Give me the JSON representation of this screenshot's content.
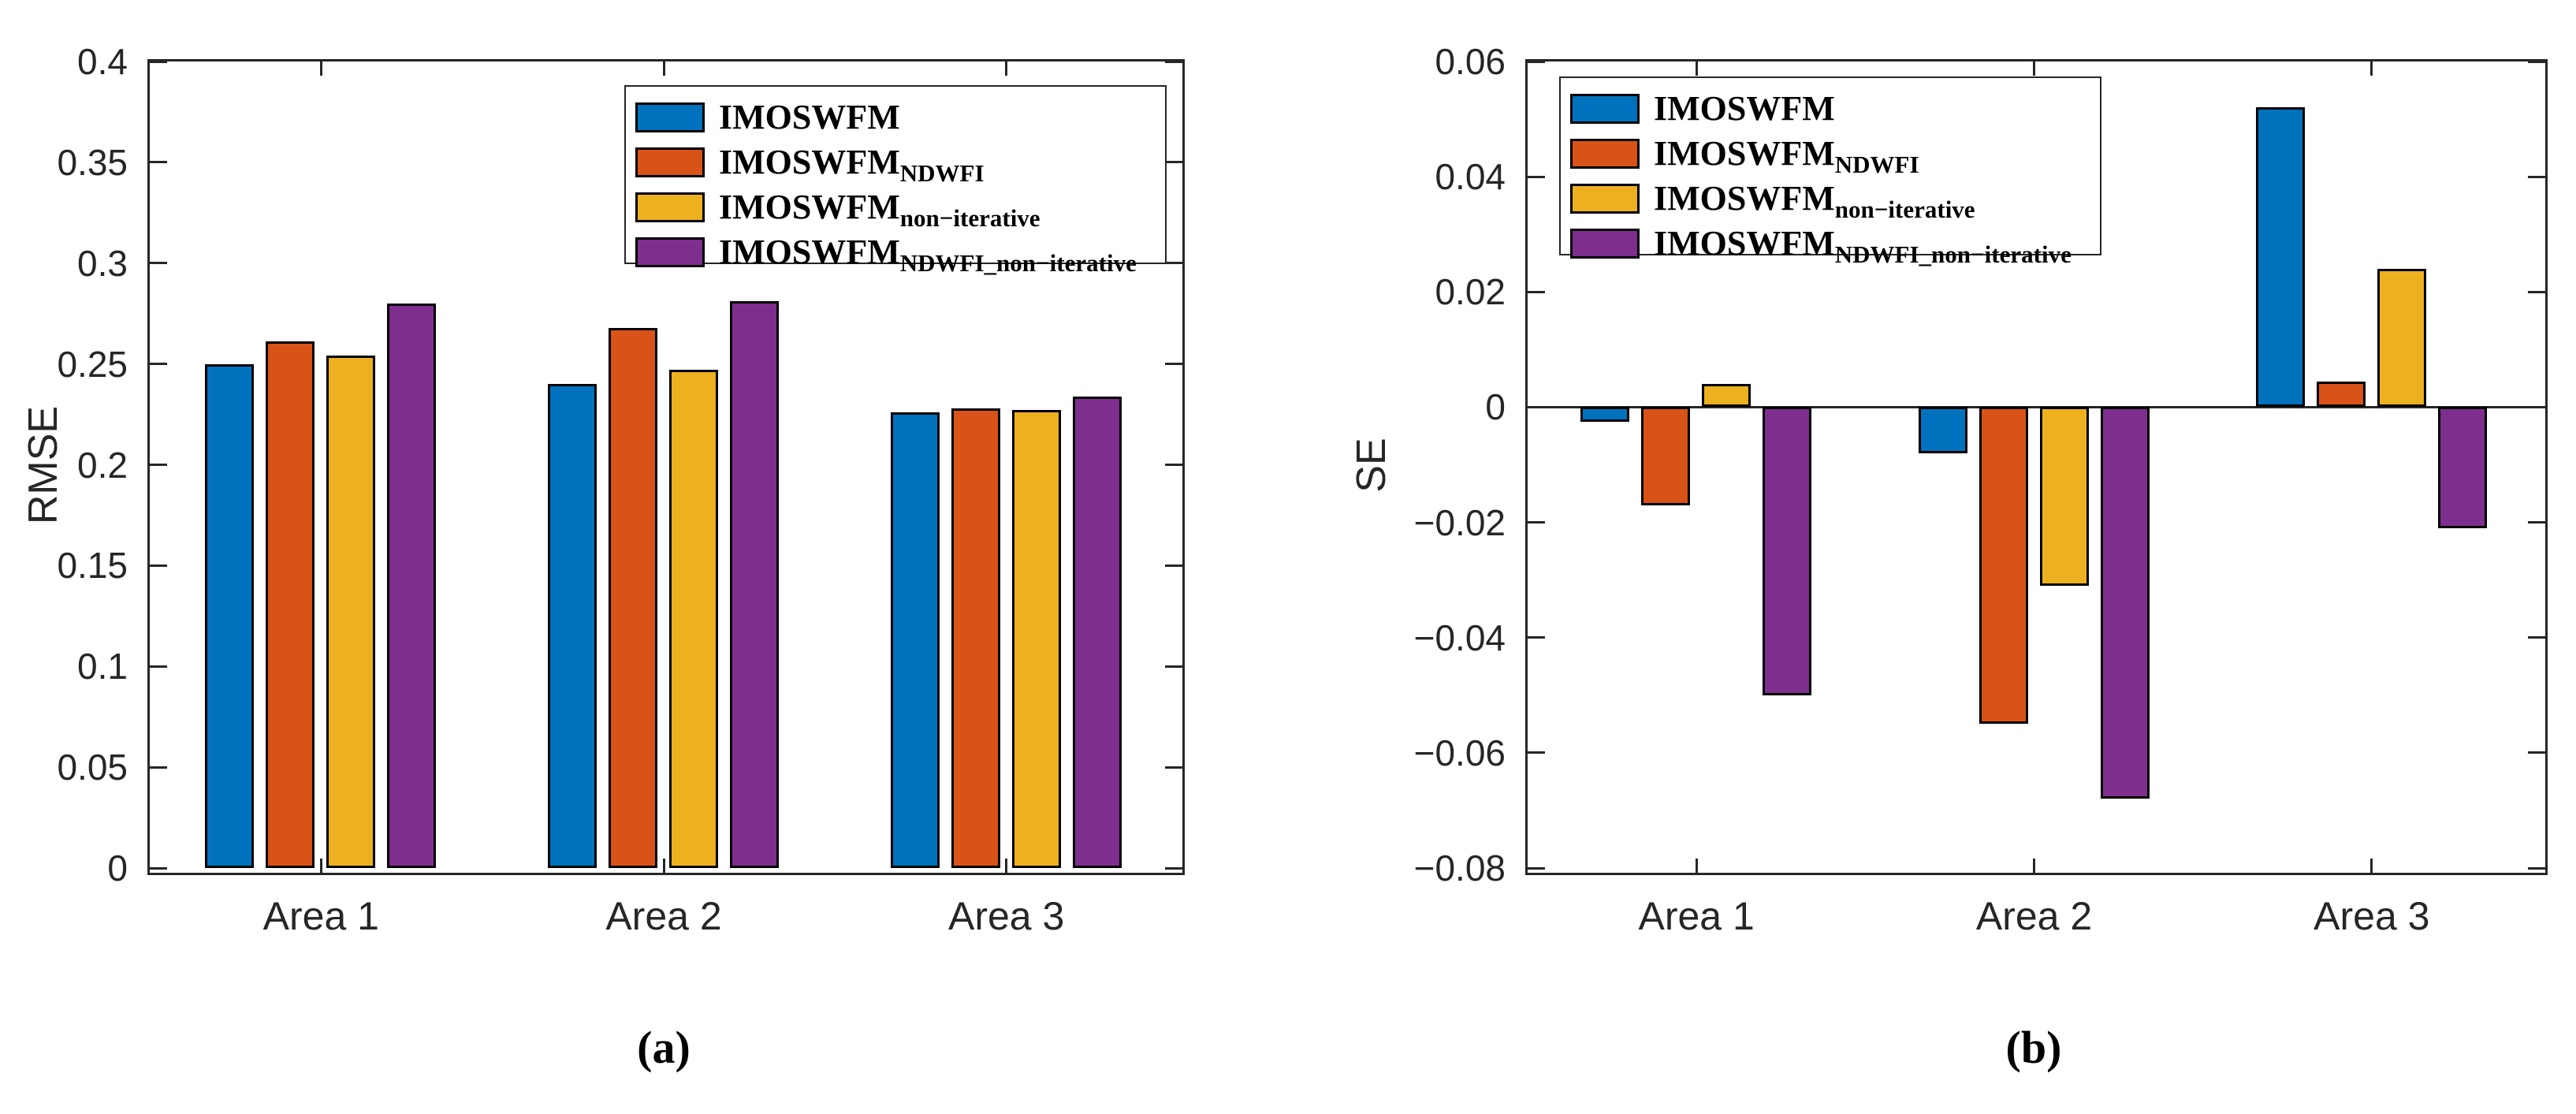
{
  "figure": {
    "captions": {
      "a": "(a)",
      "b": "(b)"
    }
  },
  "colors": {
    "series_blue": "#0072BD",
    "series_orange": "#D95319",
    "series_yellow": "#EDB120",
    "series_purple": "#7E2F8E",
    "axis": "#262626"
  },
  "legend": [
    {
      "base": "IMOSWFM",
      "sub": ""
    },
    {
      "base": "IMOSWFM",
      "sub": "NDWFI"
    },
    {
      "base": "IMOSWFM",
      "sub": "non−iterative"
    },
    {
      "base": "IMOSWFM",
      "sub": "NDWFI_non−iterative"
    }
  ],
  "chart_data": [
    {
      "id": "rmse",
      "type": "bar",
      "title": "",
      "xlabel": "",
      "ylabel": "RMSE",
      "caption": "(a)",
      "categories": [
        "Area 1",
        "Area 2",
        "Area 3"
      ],
      "series": [
        {
          "name": "IMOSWFM",
          "color": "#0072BD",
          "values": [
            0.25,
            0.24,
            0.226
          ]
        },
        {
          "name": "IMOSWFM_NDWFI",
          "color": "#D95319",
          "values": [
            0.261,
            0.268,
            0.228
          ]
        },
        {
          "name": "IMOSWFM_non-iterative",
          "color": "#EDB120",
          "values": [
            0.254,
            0.247,
            0.227
          ]
        },
        {
          "name": "IMOSWFM_NDWFI_non-iterative",
          "color": "#7E2F8E",
          "values": [
            0.28,
            0.281,
            0.234
          ]
        }
      ],
      "ylim": [
        0,
        0.4
      ],
      "ytick_values": [
        0,
        0.05,
        0.1,
        0.15,
        0.2,
        0.25,
        0.3,
        0.35,
        0.4
      ],
      "ytick_labels": [
        "0",
        "0.05",
        "0.1",
        "0.15",
        "0.2",
        "0.25",
        "0.3",
        "0.35",
        "0.4"
      ],
      "grid": false,
      "legend_position": "northeast"
    },
    {
      "id": "se",
      "type": "bar",
      "title": "",
      "xlabel": "",
      "ylabel": "SE",
      "caption": "(b)",
      "categories": [
        "Area 1",
        "Area 2",
        "Area 3"
      ],
      "series": [
        {
          "name": "IMOSWFM",
          "color": "#0072BD",
          "values": [
            -0.0025,
            -0.008,
            0.052
          ]
        },
        {
          "name": "IMOSWFM_NDWFI",
          "color": "#D95319",
          "values": [
            -0.017,
            -0.055,
            0.0045
          ]
        },
        {
          "name": "IMOSWFM_non-iterative",
          "color": "#EDB120",
          "values": [
            0.004,
            -0.031,
            0.024
          ]
        },
        {
          "name": "IMOSWFM_NDWFI_non-iterative",
          "color": "#7E2F8E",
          "values": [
            -0.05,
            -0.068,
            -0.021
          ]
        }
      ],
      "ylim": [
        -0.08,
        0.06
      ],
      "ytick_values": [
        -0.08,
        -0.06,
        -0.04,
        -0.02,
        0,
        0.02,
        0.04,
        0.06
      ],
      "ytick_labels": [
        "−0.08",
        "−0.06",
        "−0.04",
        "−0.02",
        "0",
        "0.02",
        "0.04",
        "0.06"
      ],
      "grid": false,
      "legend_position": "northwest"
    }
  ]
}
